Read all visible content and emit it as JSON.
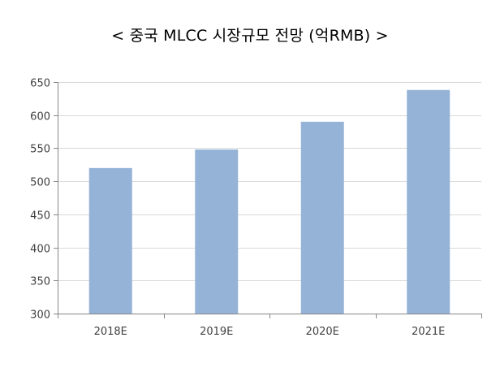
{
  "chart_data": {
    "type": "bar",
    "title": "< 중국 MLCC 시장규모 전망 (억RMB) >",
    "categories": [
      "2018E",
      "2019E",
      "2020E",
      "2021E"
    ],
    "values": [
      520,
      548,
      590,
      638
    ],
    "xlabel": "",
    "ylabel": "",
    "ylim": [
      300,
      650
    ],
    "yticks": [
      300,
      350,
      400,
      450,
      500,
      550,
      600,
      650
    ],
    "grid": true,
    "legend": "none",
    "colors": {
      "bar": "#95b3d7",
      "grid": "#d9d9d9",
      "axis": "#868686"
    }
  }
}
